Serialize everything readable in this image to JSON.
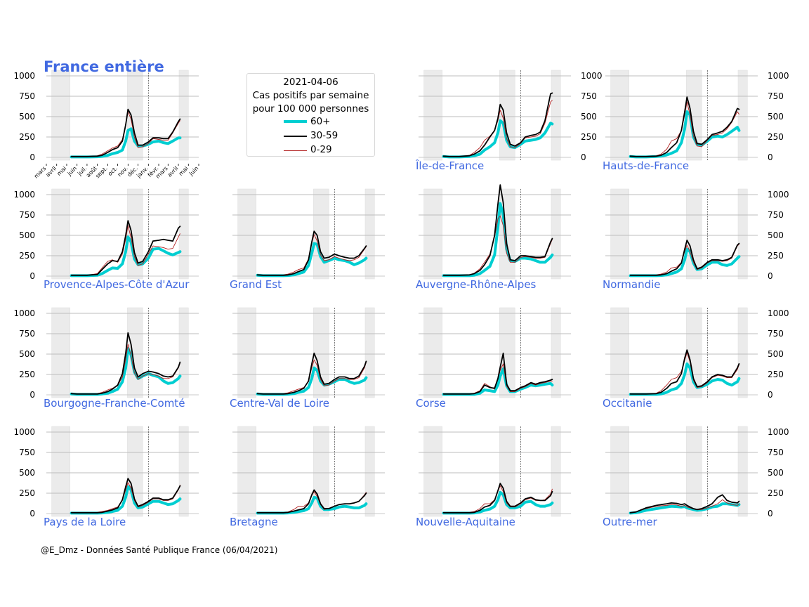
{
  "figure": {
    "credit": "@E_Dmz - Données Santé Publique France (06/04/2021)",
    "label_color": "#4169e1"
  },
  "legend": {
    "title_lines": [
      "2021-04-06",
      "Cas positifs par semaine",
      "pour 100 000 personnes"
    ],
    "entries": [
      {
        "label": "60+",
        "color": "#00ced1"
      },
      {
        "label": "30-59",
        "color": "#000000"
      },
      {
        "label": "0-29",
        "color": "#b22222"
      }
    ]
  },
  "chart_data": {
    "type": "line",
    "yticks": [
      0,
      250,
      500,
      750,
      1000
    ],
    "ylim": [
      0,
      1050
    ],
    "month_ticks": [
      "mars",
      "avril",
      "mai",
      "juin",
      "juil.",
      "août",
      "sept.",
      "oct.",
      "nov.",
      "déc.",
      "janv.",
      "févr.",
      "mars",
      "avril",
      "mai",
      "juin"
    ],
    "x_range": [
      "2020-03-01",
      "2021-06-01"
    ],
    "shaded_periods": [
      [
        "2020-03-17",
        "2020-05-11"
      ],
      [
        "2020-10-30",
        "2020-12-15"
      ],
      [
        "2021-04-03",
        "2021-05-01"
      ]
    ],
    "marker_date": "2021-01-01",
    "dates": [
      "2020-05-15",
      "2020-06-01",
      "2020-07-01",
      "2020-08-01",
      "2020-08-15",
      "2020-09-01",
      "2020-09-15",
      "2020-10-01",
      "2020-10-15",
      "2020-10-25",
      "2020-11-01",
      "2020-11-10",
      "2020-11-20",
      "2020-12-01",
      "2020-12-15",
      "2021-01-01",
      "2021-01-15",
      "2021-02-01",
      "2021-02-15",
      "2021-03-01",
      "2021-03-15",
      "2021-04-01",
      "2021-04-06"
    ],
    "series_names": [
      "60+",
      "30-59",
      "0-29"
    ],
    "panels": [
      {
        "name": "France entière",
        "is_title": true,
        "yaxis": "left",
        "month_axis": true,
        "s60": [
          5,
          5,
          5,
          8,
          12,
          25,
          45,
          60,
          90,
          200,
          330,
          350,
          200,
          140,
          140,
          160,
          190,
          200,
          180,
          170,
          200,
          240,
          240
        ],
        "s30": [
          10,
          10,
          10,
          15,
          25,
          60,
          95,
          120,
          200,
          400,
          590,
          520,
          300,
          150,
          150,
          190,
          240,
          240,
          230,
          230,
          310,
          440,
          470
        ],
        "s0": [
          10,
          10,
          10,
          20,
          40,
          80,
          115,
          140,
          220,
          400,
          560,
          470,
          250,
          120,
          130,
          170,
          230,
          220,
          210,
          210,
          300,
          420,
          450
        ]
      },
      {
        "name": "Île-de-France",
        "yaxis": "right",
        "s60": [
          10,
          5,
          5,
          10,
          20,
          40,
          90,
          130,
          180,
          300,
          450,
          420,
          210,
          130,
          120,
          160,
          200,
          210,
          220,
          240,
          300,
          420,
          410
        ],
        "s30": [
          15,
          10,
          10,
          20,
          40,
          80,
          150,
          250,
          330,
          480,
          650,
          580,
          300,
          160,
          140,
          180,
          250,
          270,
          280,
          310,
          450,
          780,
          790
        ],
        "s0": [
          15,
          10,
          10,
          25,
          60,
          120,
          210,
          260,
          330,
          450,
          580,
          480,
          230,
          130,
          120,
          170,
          240,
          250,
          260,
          290,
          420,
          680,
          700
        ]
      },
      {
        "name": "Hauts-de-France",
        "yaxis": "right",
        "s60": [
          10,
          5,
          5,
          10,
          15,
          30,
          50,
          80,
          180,
          350,
          560,
          520,
          250,
          160,
          150,
          200,
          250,
          260,
          250,
          280,
          320,
          370,
          330
        ],
        "s30": [
          15,
          10,
          10,
          15,
          25,
          60,
          120,
          180,
          330,
          560,
          740,
          600,
          320,
          170,
          160,
          220,
          280,
          300,
          320,
          370,
          440,
          600,
          590
        ],
        "s0": [
          15,
          10,
          10,
          20,
          40,
          100,
          200,
          230,
          330,
          520,
          680,
          520,
          260,
          140,
          130,
          210,
          270,
          280,
          300,
          350,
          430,
          560,
          530
        ]
      },
      {
        "name": "Provence-Alpes-Côte d'Azur",
        "yaxis": "left",
        "s60": [
          5,
          5,
          5,
          10,
          30,
          70,
          100,
          95,
          150,
          300,
          480,
          420,
          210,
          140,
          150,
          220,
          330,
          340,
          310,
          280,
          260,
          290,
          300
        ],
        "s30": [
          10,
          10,
          10,
          20,
          80,
          150,
          190,
          180,
          300,
          500,
          680,
          560,
          290,
          160,
          180,
          300,
          430,
          440,
          450,
          440,
          430,
          590,
          610
        ],
        "s0": [
          10,
          10,
          10,
          30,
          100,
          180,
          200,
          170,
          270,
          450,
          620,
          470,
          240,
          130,
          150,
          270,
          370,
          360,
          350,
          330,
          340,
          480,
          520
        ]
      },
      {
        "name": "Grand Est",
        "yaxis": "none",
        "s60": [
          10,
          5,
          5,
          5,
          8,
          15,
          30,
          50,
          130,
          280,
          400,
          390,
          240,
          170,
          190,
          220,
          200,
          190,
          170,
          140,
          160,
          200,
          220
        ],
        "s30": [
          15,
          10,
          10,
          10,
          15,
          30,
          55,
          80,
          200,
          420,
          550,
          500,
          300,
          220,
          230,
          270,
          250,
          230,
          220,
          220,
          250,
          340,
          370
        ],
        "s0": [
          15,
          10,
          10,
          15,
          25,
          50,
          80,
          100,
          210,
          400,
          510,
          430,
          260,
          190,
          200,
          240,
          220,
          200,
          190,
          200,
          230,
          330,
          360
        ]
      },
      {
        "name": "Auvergne-Rhône-Alpes",
        "yaxis": "none",
        "s60": [
          5,
          5,
          5,
          5,
          10,
          30,
          70,
          120,
          260,
          600,
          890,
          750,
          330,
          190,
          180,
          220,
          220,
          210,
          190,
          170,
          170,
          230,
          260
        ],
        "s30": [
          10,
          10,
          10,
          15,
          30,
          70,
          140,
          250,
          500,
          880,
          1120,
          900,
          400,
          200,
          190,
          250,
          250,
          240,
          230,
          230,
          240,
          420,
          460
        ],
        "s0": [
          10,
          10,
          10,
          15,
          35,
          90,
          170,
          270,
          480,
          700,
          740,
          620,
          280,
          170,
          170,
          230,
          240,
          230,
          220,
          220,
          230,
          400,
          450
        ]
      },
      {
        "name": "Normandie",
        "yaxis": "right",
        "s60": [
          5,
          5,
          5,
          5,
          8,
          15,
          30,
          50,
          90,
          200,
          330,
          300,
          160,
          80,
          90,
          140,
          170,
          170,
          140,
          130,
          150,
          220,
          240
        ],
        "s30": [
          10,
          10,
          10,
          10,
          15,
          30,
          60,
          90,
          160,
          330,
          440,
          370,
          200,
          90,
          110,
          170,
          200,
          200,
          190,
          200,
          230,
          380,
          400
        ],
        "s0": [
          10,
          10,
          10,
          15,
          25,
          50,
          100,
          110,
          170,
          300,
          380,
          300,
          170,
          80,
          100,
          160,
          190,
          190,
          180,
          190,
          220,
          370,
          390
        ]
      },
      {
        "name": "Bourgogne-Franche-Comté",
        "yaxis": "left",
        "s60": [
          10,
          5,
          5,
          5,
          10,
          20,
          40,
          70,
          160,
          330,
          570,
          490,
          280,
          200,
          230,
          260,
          240,
          220,
          170,
          140,
          150,
          200,
          230
        ],
        "s30": [
          15,
          10,
          10,
          10,
          20,
          40,
          70,
          120,
          260,
          510,
          760,
          620,
          330,
          220,
          260,
          290,
          280,
          260,
          230,
          220,
          230,
          340,
          400
        ],
        "s0": [
          15,
          10,
          10,
          15,
          30,
          60,
          80,
          110,
          220,
          440,
          620,
          480,
          270,
          190,
          230,
          260,
          250,
          230,
          200,
          200,
          220,
          330,
          390
        ]
      },
      {
        "name": "Centre-Val de Loire",
        "yaxis": "none",
        "s60": [
          10,
          5,
          5,
          5,
          8,
          15,
          30,
          45,
          90,
          200,
          330,
          300,
          170,
          120,
          130,
          160,
          190,
          190,
          160,
          140,
          150,
          180,
          210
        ],
        "s30": [
          15,
          10,
          10,
          10,
          15,
          30,
          50,
          80,
          170,
          380,
          510,
          420,
          220,
          130,
          140,
          190,
          220,
          220,
          200,
          200,
          230,
          350,
          410
        ],
        "s0": [
          15,
          10,
          10,
          15,
          25,
          50,
          70,
          90,
          160,
          330,
          430,
          360,
          190,
          110,
          120,
          170,
          200,
          200,
          190,
          190,
          210,
          330,
          400
        ]
      },
      {
        "name": "Corse",
        "yaxis": "none",
        "s60": [
          5,
          5,
          5,
          5,
          5,
          20,
          60,
          50,
          40,
          120,
          230,
          320,
          110,
          40,
          40,
          70,
          90,
          120,
          110,
          120,
          130,
          140,
          120
        ],
        "s30": [
          10,
          10,
          10,
          10,
          15,
          40,
          120,
          90,
          80,
          200,
          340,
          510,
          130,
          50,
          50,
          90,
          110,
          150,
          130,
          150,
          160,
          180,
          190
        ],
        "s0": [
          10,
          10,
          10,
          10,
          20,
          50,
          140,
          100,
          70,
          190,
          300,
          380,
          110,
          40,
          40,
          80,
          100,
          140,
          120,
          140,
          150,
          170,
          170
        ]
      },
      {
        "name": "Occitanie",
        "yaxis": "right",
        "s60": [
          5,
          5,
          5,
          5,
          10,
          30,
          60,
          80,
          140,
          250,
          380,
          330,
          160,
          90,
          100,
          130,
          170,
          190,
          180,
          140,
          120,
          160,
          200
        ],
        "s30": [
          10,
          10,
          10,
          15,
          30,
          80,
          140,
          160,
          260,
          450,
          550,
          430,
          200,
          100,
          110,
          160,
          220,
          250,
          240,
          220,
          220,
          330,
          380
        ],
        "s0": [
          10,
          10,
          10,
          20,
          50,
          120,
          190,
          210,
          290,
          420,
          520,
          400,
          180,
          90,
          100,
          150,
          210,
          240,
          230,
          210,
          210,
          310,
          370
        ]
      },
      {
        "name": "Pays de la Loire",
        "yaxis": "left",
        "s60": [
          5,
          5,
          5,
          5,
          8,
          15,
          25,
          40,
          90,
          200,
          330,
          290,
          130,
          70,
          80,
          120,
          150,
          150,
          130,
          110,
          120,
          160,
          180
        ],
        "s30": [
          10,
          10,
          10,
          10,
          15,
          30,
          45,
          70,
          170,
          330,
          430,
          370,
          180,
          90,
          110,
          150,
          190,
          190,
          170,
          170,
          190,
          300,
          340
        ],
        "s0": [
          10,
          10,
          10,
          15,
          25,
          40,
          60,
          80,
          160,
          290,
          380,
          310,
          160,
          80,
          100,
          140,
          180,
          180,
          160,
          160,
          180,
          290,
          350
        ]
      },
      {
        "name": "Bretagne",
        "yaxis": "none",
        "s60": [
          5,
          5,
          5,
          5,
          8,
          15,
          25,
          35,
          60,
          130,
          200,
          190,
          90,
          50,
          50,
          60,
          80,
          90,
          80,
          70,
          70,
          100,
          120
        ],
        "s30": [
          10,
          10,
          10,
          10,
          15,
          30,
          45,
          60,
          120,
          230,
          290,
          240,
          120,
          60,
          60,
          90,
          110,
          120,
          120,
          130,
          150,
          220,
          250
        ],
        "s0": [
          10,
          10,
          10,
          10,
          20,
          50,
          90,
          90,
          130,
          220,
          270,
          210,
          110,
          50,
          60,
          90,
          110,
          120,
          120,
          130,
          150,
          230,
          260
        ]
      },
      {
        "name": "Nouvelle-Aquitaine",
        "yaxis": "none",
        "s60": [
          5,
          5,
          5,
          5,
          8,
          20,
          40,
          55,
          90,
          170,
          260,
          230,
          110,
          70,
          70,
          90,
          140,
          150,
          110,
          90,
          90,
          110,
          130
        ],
        "s30": [
          10,
          10,
          10,
          10,
          15,
          40,
          80,
          100,
          160,
          280,
          370,
          310,
          150,
          90,
          90,
          130,
          180,
          200,
          170,
          160,
          160,
          220,
          270
        ],
        "s0": [
          10,
          10,
          10,
          15,
          25,
          60,
          120,
          120,
          170,
          280,
          340,
          270,
          130,
          80,
          80,
          120,
          170,
          190,
          160,
          160,
          170,
          240,
          300
        ]
      },
      {
        "name": "Outre-mer",
        "yaxis": "right",
        "s60": [
          5,
          10,
          40,
          60,
          70,
          80,
          90,
          85,
          80,
          85,
          70,
          60,
          50,
          40,
          45,
          60,
          80,
          90,
          120,
          120,
          110,
          100,
          110
        ],
        "s30": [
          10,
          20,
          70,
          100,
          110,
          120,
          130,
          125,
          110,
          120,
          100,
          80,
          60,
          50,
          60,
          90,
          120,
          200,
          230,
          160,
          140,
          130,
          150
        ],
        "s0": [
          10,
          20,
          60,
          90,
          95,
          100,
          110,
          105,
          90,
          100,
          80,
          70,
          55,
          45,
          50,
          70,
          90,
          120,
          170,
          130,
          110,
          100,
          120
        ]
      }
    ]
  }
}
